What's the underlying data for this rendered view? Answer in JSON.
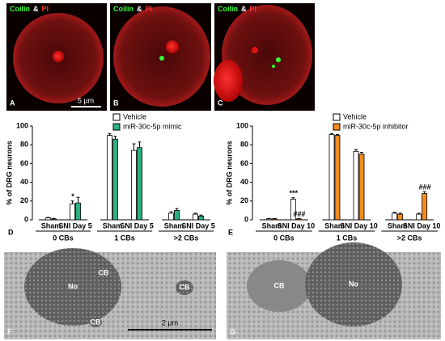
{
  "panels": {
    "fluorescence": [
      {
        "letter": "A",
        "stain1": "Coilin",
        "amp": "&",
        "stain2": "PI"
      },
      {
        "letter": "B",
        "stain1": "Coilin",
        "amp": "&",
        "stain2": "PI"
      },
      {
        "letter": "C",
        "stain1": "Coilin",
        "amp": "&",
        "stain2": "PI"
      }
    ],
    "scale_bar_top": "5 µm",
    "em": [
      {
        "letter": "F",
        "labels": [
          "No",
          "CB",
          "CB",
          "CB"
        ]
      },
      {
        "letter": "G",
        "labels": [
          "CB",
          "No"
        ]
      }
    ],
    "scale_bar_em": "2 µm"
  },
  "chart_data": [
    {
      "type": "bar",
      "panel": "D",
      "ylabel": "% of DRG neurons",
      "ylim": [
        0,
        100
      ],
      "yticks": [
        0,
        20,
        40,
        60,
        80,
        100
      ],
      "groups": [
        "0 CBs",
        "1 CBs",
        ">2 CBs"
      ],
      "categories": [
        "Sham",
        "SNI Day 5",
        "Sham",
        "SNI Day 5",
        "Sham",
        "SNI Day 5"
      ],
      "series": [
        {
          "name": "Vehicle",
          "color": "#ffffff",
          "values": [
            2,
            17,
            90,
            74,
            7,
            6
          ],
          "errors": [
            0.5,
            3,
            2,
            7,
            1.5,
            1
          ],
          "annotations": [
            null,
            "*",
            null,
            null,
            null,
            null
          ]
        },
        {
          "name": "miR-30c-5p mimic",
          "color": "#2bb07f",
          "values": [
            1,
            18,
            86,
            77,
            10,
            4
          ],
          "errors": [
            0.5,
            6,
            3,
            6,
            2,
            1
          ],
          "annotations": [
            null,
            null,
            null,
            null,
            null,
            null
          ]
        }
      ]
    },
    {
      "type": "bar",
      "panel": "E",
      "ylabel": "% of DRG neurons",
      "ylim": [
        0,
        100
      ],
      "yticks": [
        0,
        20,
        40,
        60,
        80,
        100
      ],
      "groups": [
        "0 CBs",
        "1 CBs",
        ">2 CBs"
      ],
      "categories": [
        "Sham",
        "SNI Day 10",
        "Sham",
        "SNI Day 10",
        "Sham",
        "SNI Day 10"
      ],
      "series": [
        {
          "name": "Vehicle",
          "color": "#ffffff",
          "values": [
            1,
            22,
            91,
            73,
            7,
            6
          ],
          "errors": [
            0.3,
            1.5,
            1,
            2,
            1,
            1
          ],
          "annotations": [
            null,
            "***",
            null,
            null,
            null,
            null
          ]
        },
        {
          "name": "miR-30c-5p inhibitor",
          "color": "#f28c1e",
          "values": [
            1,
            1,
            90,
            70,
            6,
            28
          ],
          "errors": [
            0.3,
            0.3,
            1,
            2,
            1,
            2
          ],
          "annotations": [
            null,
            "###",
            null,
            null,
            null,
            "###"
          ]
        }
      ]
    }
  ]
}
